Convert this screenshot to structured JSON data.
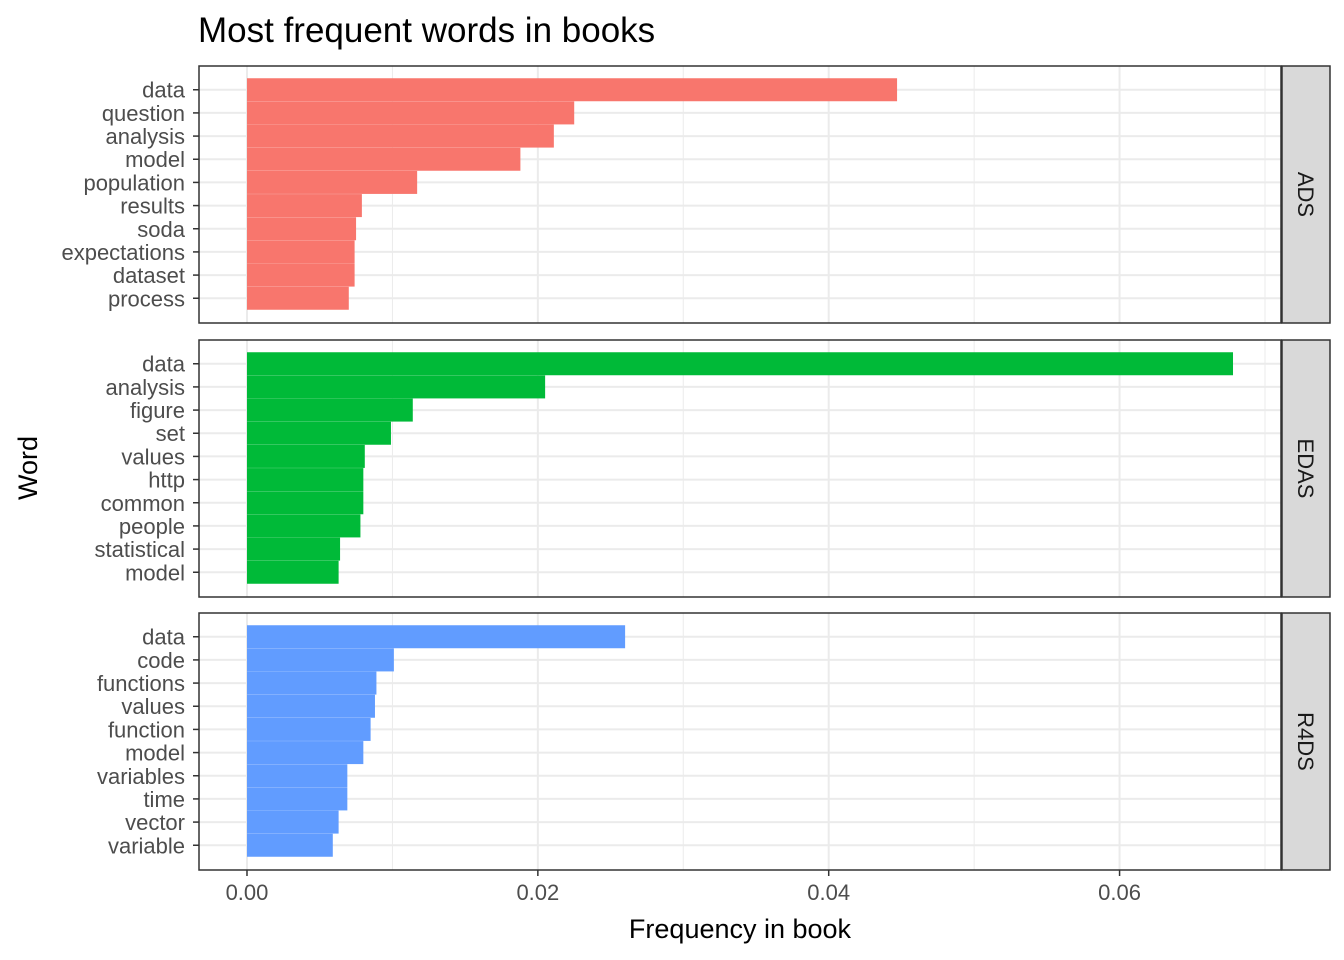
{
  "chart_data": {
    "type": "bar",
    "orientation": "horizontal",
    "faceted": true,
    "title": "Most frequent words in books",
    "xlabel": "Frequency in book",
    "ylabel": "Word",
    "xlim": [
      -0.0033,
      0.0711
    ],
    "xticks": [
      0.0,
      0.02,
      0.04,
      0.06
    ],
    "xtick_labels": [
      "0.00",
      "0.02",
      "0.04",
      "0.06"
    ],
    "grid": true,
    "legend": "none",
    "panels": [
      {
        "name": "ADS",
        "color": "#F8766D",
        "categories": [
          "data",
          "question",
          "analysis",
          "model",
          "population",
          "results",
          "soda",
          "expectations",
          "dataset",
          "process"
        ],
        "values": [
          0.0447,
          0.0225,
          0.0211,
          0.0188,
          0.0117,
          0.0079,
          0.0075,
          0.0074,
          0.0074,
          0.007
        ]
      },
      {
        "name": "EDAS",
        "color": "#00BA38",
        "categories": [
          "data",
          "analysis",
          "figure",
          "set",
          "values",
          "http",
          "common",
          "people",
          "statistical",
          "model"
        ],
        "values": [
          0.0678,
          0.0205,
          0.0114,
          0.0099,
          0.0081,
          0.008,
          0.008,
          0.0078,
          0.0064,
          0.0063
        ]
      },
      {
        "name": "R4DS",
        "color": "#619CFF",
        "categories": [
          "data",
          "code",
          "functions",
          "values",
          "function",
          "model",
          "variables",
          "time",
          "vector",
          "variable"
        ],
        "values": [
          0.026,
          0.0101,
          0.0089,
          0.0088,
          0.0085,
          0.008,
          0.0069,
          0.0069,
          0.0063,
          0.0059
        ]
      }
    ]
  }
}
